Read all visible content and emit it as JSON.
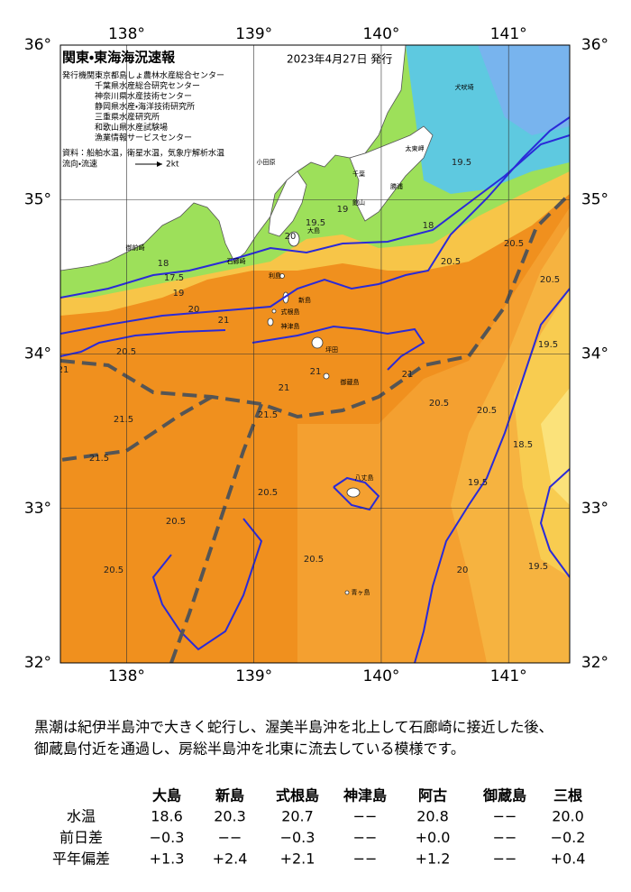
{
  "map_data": {
    "title": "関東・東海海況速報",
    "issued": "2023年4月27日 発行",
    "agency_label": "発行機関：",
    "agencies": [
      "東京都島しょ農林水産総合センター",
      "千葉県水産総合研究センター",
      "神奈川県水産技術センター",
      "静岡県水産・海洋技術研究所",
      "三重県水産研究所",
      "和歌山県水産試験場",
      "漁業情報サービスセンター"
    ],
    "sources": "資料：船舶水温，衛星水温，気象庁解析水温",
    "current_legend": "流向・流速",
    "current_scale": "2kt",
    "xlim": [
      137.48,
      141.48
    ],
    "ylim": [
      32,
      36
    ],
    "xticks": [
      {
        "value": 138,
        "label": "138°"
      },
      {
        "value": 139,
        "label": "139°"
      },
      {
        "value": 140,
        "label": "140°"
      },
      {
        "value": 141,
        "label": "141°"
      }
    ],
    "yticks": [
      {
        "value": 32,
        "label": "32°"
      },
      {
        "value": 33,
        "label": "33°"
      },
      {
        "value": 34,
        "label": "34°"
      },
      {
        "value": 35,
        "label": "35°"
      },
      {
        "value": 36,
        "label": "36°"
      }
    ],
    "contour_labels": [
      "19.5",
      "20",
      "18",
      "20.5",
      "20.5",
      "20.5",
      "19.5",
      "21",
      "20.5",
      "21",
      "20",
      "19",
      "21",
      "21",
      "21",
      "21.5",
      "21.5",
      "21.5",
      "20.5",
      "20.5",
      "18.5",
      "19.5",
      "20.5",
      "20.5",
      "20.5",
      "20.5",
      "20",
      "19.5",
      "19",
      "17.5",
      "18",
      "19.5"
    ],
    "place_labels": [
      "大島",
      "利島",
      "新島",
      "式根島",
      "神津島",
      "坪田",
      "御蔵島",
      "八丈島",
      "青ヶ島",
      "犬吠埼",
      "太東岬",
      "勝浦",
      "千葉",
      "館山",
      "小田原",
      "石廊崎",
      "御前崎"
    ]
  },
  "description": [
    "黒潮は紀伊半島沖で大きく蛇行し、渥美半島沖を北上して石廊崎に接近した後、",
    "御蔵島付近を通過し、房総半島沖を北東に流去している模様です。"
  ],
  "table": {
    "columns": [
      "大島",
      "新島",
      "式根島",
      "神津島",
      "阿古",
      "御蔵島",
      "三根"
    ],
    "rows": [
      {
        "label": "水温",
        "cells": [
          "18.6",
          "20.3",
          "20.7",
          "−−",
          "20.8",
          "−−",
          "20.0"
        ]
      },
      {
        "label": "前日差",
        "cells": [
          "−0.3",
          "−−",
          "−0.3",
          "−−",
          "+0.0",
          "−−",
          "−0.2"
        ]
      },
      {
        "label": "平年偏差",
        "cells": [
          "+1.3",
          "+2.4",
          "+2.1",
          "−−",
          "+1.2",
          "−−",
          "+0.4"
        ]
      }
    ]
  }
}
